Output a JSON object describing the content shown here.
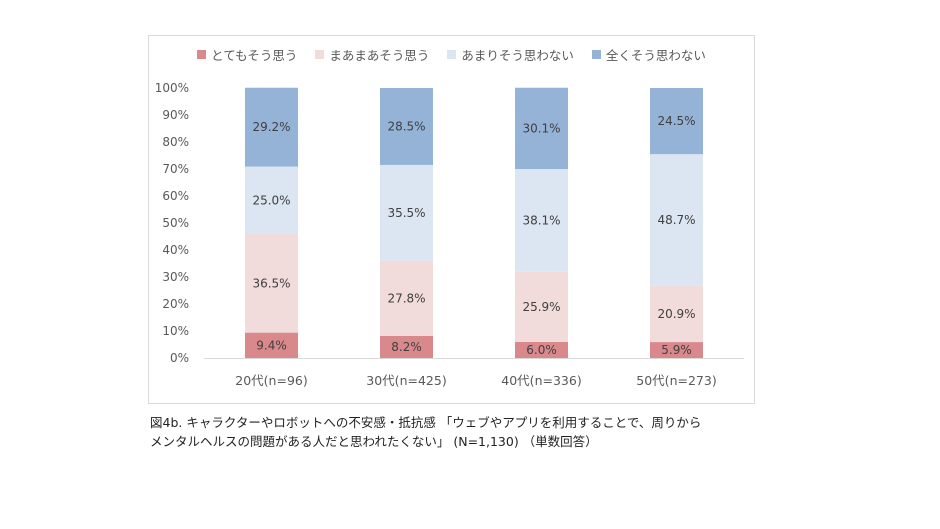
{
  "chart_data": {
    "type": "bar",
    "stacked": true,
    "categories": [
      "20代(n=96)",
      "30代(n=425)",
      "40代(n=336)",
      "50代(n=273)"
    ],
    "series": [
      {
        "name": "とてもそう思う",
        "color": "#d9888c",
        "values": [
          9.4,
          8.2,
          6.0,
          5.9
        ],
        "labels": [
          "9.4%",
          "8.2%",
          "6.0%",
          "5.9%"
        ]
      },
      {
        "name": "まあまあそう思う",
        "color": "#f2dcdb",
        "values": [
          36.5,
          27.8,
          25.9,
          20.9
        ],
        "labels": [
          "36.5%",
          "27.8%",
          "25.9%",
          "20.9%"
        ]
      },
      {
        "name": "あまりそう思わない",
        "color": "#dce6f2",
        "values": [
          25.0,
          35.5,
          38.1,
          48.7
        ],
        "labels": [
          "25.0%",
          "35.5%",
          "38.1%",
          "48.7%"
        ]
      },
      {
        "name": "全くそう思わない",
        "color": "#95b3d7",
        "values": [
          29.2,
          28.5,
          30.1,
          24.5
        ],
        "labels": [
          "29.2%",
          "28.5%",
          "30.1%",
          "24.5%"
        ]
      }
    ],
    "yticks": [
      "0%",
      "10%",
      "20%",
      "30%",
      "40%",
      "50%",
      "60%",
      "70%",
      "80%",
      "90%",
      "100%"
    ],
    "ylim": [
      0,
      100
    ],
    "grid": false,
    "legend_position": "top"
  },
  "caption": {
    "line1": "図4b. キャラクターやロボットへの不安感・抵抗感 「ウェブやアプリを利用することで、周りから",
    "line2": "メンタルヘルスの問題がある人だと思われたくない」 (N=1,130) （単数回答）"
  }
}
